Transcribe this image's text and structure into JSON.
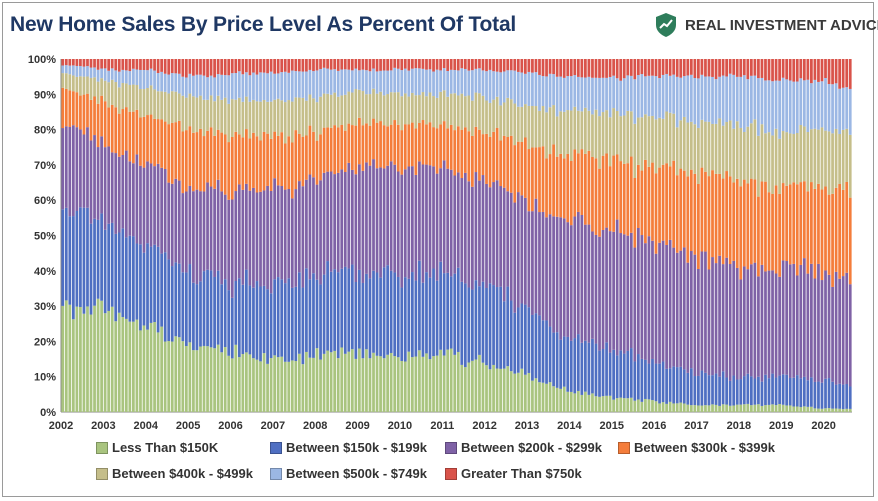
{
  "header": {
    "title": "New Home Sales By Price Level As Percent Of Total",
    "brand": "REAL INVESTMENT ADVICE",
    "brand_icon": "shield-chart-logo",
    "brand_color": "#2e7d5b"
  },
  "chart_data": {
    "type": "bar",
    "stacked": true,
    "normalized": true,
    "x_range": [
      2002,
      2020.67
    ],
    "x_tick_labels": [
      "2002",
      "2003",
      "2004",
      "2005",
      "2006",
      "2007",
      "2008",
      "2009",
      "2010",
      "2011",
      "2012",
      "2013",
      "2014",
      "2015",
      "2016",
      "2017",
      "2018",
      "2019",
      "2020"
    ],
    "y_tick_labels": [
      "0%",
      "10%",
      "20%",
      "30%",
      "40%",
      "50%",
      "60%",
      "70%",
      "80%",
      "90%",
      "100%"
    ],
    "ylim": [
      0,
      100
    ],
    "grid": false,
    "legend_position": "bottom",
    "anchor_x": [
      2002,
      2002.5,
      2003,
      2004,
      2005,
      2006,
      2007,
      2008,
      2009,
      2010,
      2011,
      2012,
      2013,
      2014,
      2015,
      2016,
      2017,
      2018,
      2019,
      2020,
      2020.67
    ],
    "series": [
      {
        "name": "Less Than $150K",
        "color": "#a9c47f",
        "anchor_values": [
          29,
          31,
          30,
          25,
          19,
          17,
          15,
          16,
          17,
          16,
          16,
          14,
          10,
          6,
          4,
          3,
          2,
          2,
          2,
          1,
          1
        ]
      },
      {
        "name": "Between $150k - $199k",
        "color": "#4f6fc2",
        "anchor_values": [
          26,
          27,
          24,
          23,
          21,
          20,
          21,
          22,
          24,
          22,
          23,
          22,
          19,
          15,
          13,
          11,
          9,
          8,
          8,
          8,
          6
        ]
      },
      {
        "name": "Between $200k - $299k",
        "color": "#7f62a6",
        "anchor_values": [
          25,
          22,
          22,
          22,
          24,
          26,
          27,
          28,
          29,
          31,
          30,
          30,
          31,
          33,
          35,
          34,
          33,
          31,
          30,
          30,
          32
        ]
      },
      {
        "name": "Between $300k - $399k",
        "color": "#f47d3b",
        "anchor_values": [
          12,
          10,
          12,
          14,
          16,
          16,
          15,
          13,
          12,
          12,
          12,
          13,
          16,
          19,
          20,
          21,
          24,
          25,
          24,
          25,
          24
        ]
      },
      {
        "name": "Between $400k - $499k",
        "color": "#c5be8a",
        "anchor_values": [
          4,
          5,
          6,
          8,
          9,
          10,
          10,
          10,
          9,
          9,
          9,
          10,
          11,
          12,
          13,
          14,
          14,
          15,
          16,
          16,
          16
        ]
      },
      {
        "name": "Between $500k - $749k",
        "color": "#9bb7e4",
        "anchor_values": [
          2,
          3,
          3,
          5,
          6,
          7,
          8,
          8,
          6,
          7,
          7,
          8,
          9,
          10,
          10,
          12,
          13,
          14,
          14,
          14,
          12
        ]
      },
      {
        "name": "Greater Than $750k",
        "color": "#d9534a",
        "anchor_values": [
          2,
          2,
          3,
          3,
          5,
          4,
          4,
          3,
          3,
          3,
          3,
          3,
          4,
          5,
          5,
          5,
          5,
          5,
          6,
          6,
          9
        ]
      }
    ]
  }
}
